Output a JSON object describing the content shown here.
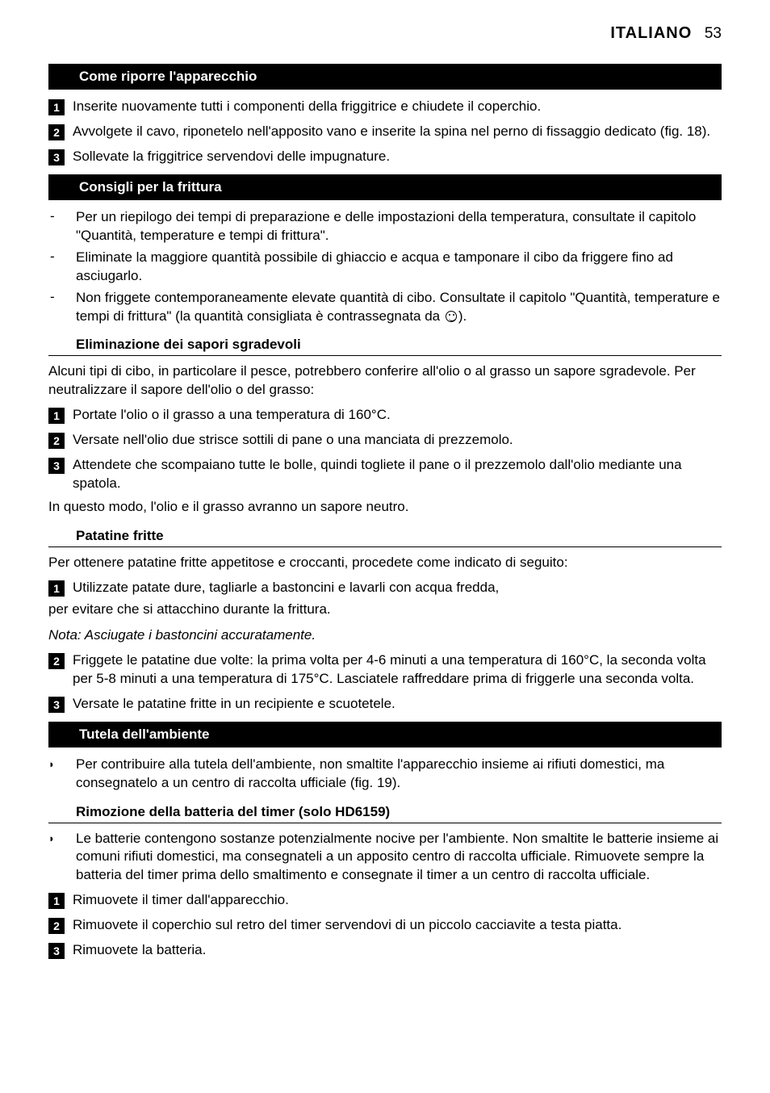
{
  "header": {
    "language": "ITALIANO",
    "pageNumber": "53"
  },
  "sections": {
    "storage": {
      "title": "Come riporre l'apparecchio",
      "steps": [
        "Inserite nuovamente tutti i componenti della friggitrice e chiudete il coperchio.",
        "Avvolgete il cavo, riponetelo nell'apposito vano e inserite la spina nel perno di fissaggio dedicato (fig. 18).",
        "Sollevate la friggitrice servendovi delle impugnature."
      ]
    },
    "tips": {
      "title": "Consigli per la frittura",
      "bullets": [
        "Per un riepilogo dei tempi di preparazione e delle impostazioni della temperatura, consultate il capitolo \"Quantità, temperature e tempi di frittura\".",
        "Eliminate la maggiore quantità possibile di ghiaccio e acqua e tamponare il cibo da friggere fino ad asciugarlo.",
        "Non friggete contemporaneamente elevate quantità di cibo. Consultate il capitolo \"Quantità, temperature e tempi di frittura\" (la quantità consigliata è contrassegnata da "
      ],
      "bullet3_suffix": ")."
    },
    "flavor": {
      "title": "Eliminazione dei sapori sgradevoli",
      "intro": "Alcuni tipi di cibo, in particolare il pesce, potrebbero conferire all'olio o al grasso un sapore sgradevole. Per neutralizzare il sapore dell'olio o del grasso:",
      "steps": [
        "Portate l'olio o il grasso a una temperatura di 160°C.",
        "Versate nell'olio due strisce sottili di pane o una manciata di prezzemolo.",
        "Attendete che scompaiano tutte le bolle, quindi togliete il pane o il prezzemolo dall'olio mediante una spatola."
      ],
      "outro": "In questo modo, l'olio e il grasso avranno un sapore neutro."
    },
    "fries": {
      "title": "Patatine fritte",
      "intro": "Per ottenere patatine fritte appetitose e croccanti, procedete come indicato di seguito:",
      "step1": "Utilizzate patate dure, tagliarle a bastoncini e lavarli con acqua fredda,",
      "step1_after": "per evitare che si attacchino durante la frittura.",
      "note": "Nota: Asciugate i bastoncini accuratamente.",
      "step2": "Friggete le patatine due volte: la prima volta per 4-6 minuti a una temperatura di 160°C, la seconda volta per 5-8 minuti a una temperatura di 175°C. Lasciatele raffreddare prima di friggerle una seconda volta.",
      "step3": "Versate le patatine fritte in un recipiente e scuotetele."
    },
    "env": {
      "title": "Tutela dell'ambiente",
      "bullet": "Per contribuire alla tutela dell'ambiente, non smaltite l'apparecchio insieme ai rifiuti domestici, ma consegnatelo a un centro di raccolta ufficiale (fig. 19)."
    },
    "battery": {
      "title": "Rimozione della batteria del timer (solo HD6159)",
      "bullet": "Le batterie contengono sostanze potenzialmente nocive per l'ambiente. Non smaltite le batterie insieme ai comuni rifiuti domestici, ma consegnateli a un apposito centro di raccolta ufficiale. Rimuovete sempre la batteria del timer prima dello smaltimento e consegnate il timer a un centro di raccolta ufficiale.",
      "steps": [
        "Rimuovete il timer dall'apparecchio.",
        "Rimuovete il coperchio sul retro del timer servendovi di un piccolo cacciavite a testa piatta.",
        "Rimuovete la batteria."
      ]
    }
  }
}
